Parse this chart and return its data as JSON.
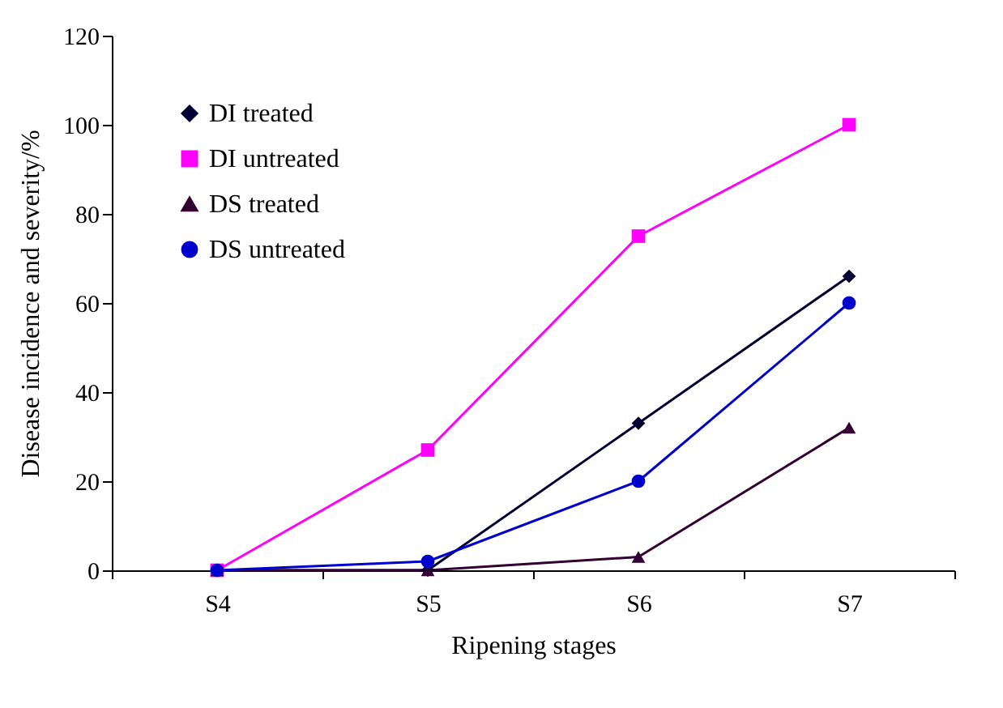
{
  "chart_data": {
    "type": "line",
    "xlabel": "Ripening stages",
    "ylabel": "Disease incidence and severity/%",
    "categories": [
      "S4",
      "S5",
      "S6",
      "S7"
    ],
    "series": [
      {
        "name": "DI treated",
        "color": "#000033",
        "marker": "diamond",
        "values": [
          0,
          0,
          33,
          66
        ]
      },
      {
        "name": "DI untreated",
        "color": "#ff00ff",
        "marker": "square",
        "values": [
          0,
          27,
          75,
          100
        ]
      },
      {
        "name": "DS treated",
        "color": "#330033",
        "marker": "triangle",
        "values": [
          0,
          0,
          3,
          32
        ]
      },
      {
        "name": "DS untreated",
        "color": "#0000cc",
        "marker": "circle",
        "values": [
          0,
          2,
          20,
          60
        ]
      }
    ],
    "ylim": [
      0,
      120
    ],
    "yticks": [
      0,
      20,
      40,
      60,
      80,
      100,
      120
    ],
    "grid": false,
    "legend": "top left",
    "line_style": "solid"
  }
}
